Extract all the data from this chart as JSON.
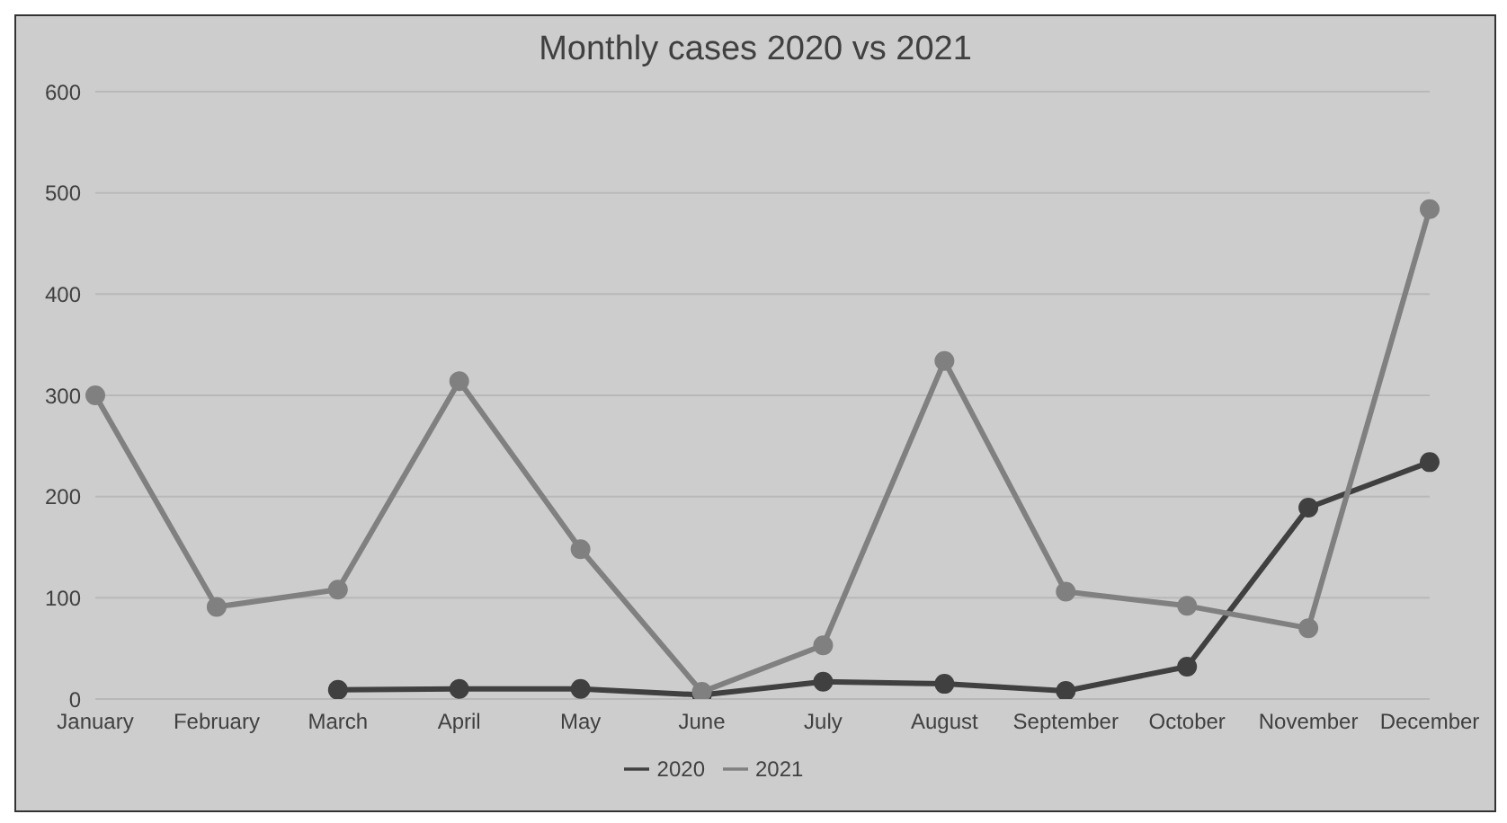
{
  "chart_data": {
    "type": "line",
    "title": "Monthly cases 2020 vs 2021",
    "categories": [
      "January",
      "February",
      "March",
      "April",
      "May",
      "June",
      "July",
      "August",
      "September",
      "October",
      "November",
      "December"
    ],
    "series": [
      {
        "name": "2020",
        "color": "#404040",
        "values": [
          null,
          null,
          9,
          10,
          10,
          4,
          17,
          15,
          8,
          32,
          189,
          234
        ]
      },
      {
        "name": "2021",
        "color": "#808080",
        "values": [
          300,
          91,
          108,
          314,
          148,
          7,
          53,
          334,
          106,
          92,
          70,
          484
        ]
      }
    ],
    "ylim": [
      0,
      600
    ],
    "yticks": [
      0,
      100,
      200,
      300,
      400,
      500,
      600
    ],
    "grid": "y",
    "legend": "bottom",
    "marker": "circle",
    "line_style": "solid"
  }
}
